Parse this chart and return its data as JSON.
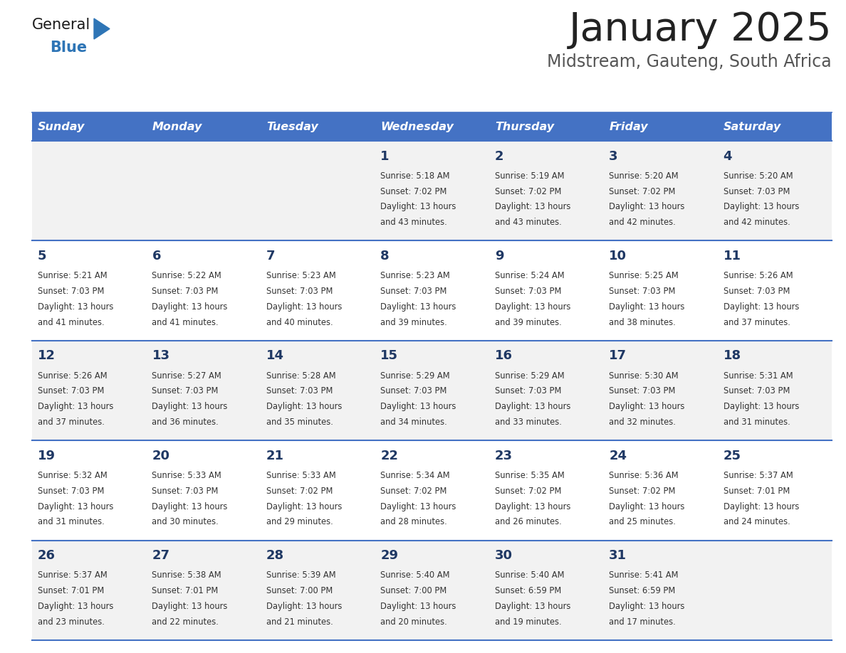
{
  "title": "January 2025",
  "subtitle": "Midstream, Gauteng, South Africa",
  "title_color": "#222222",
  "subtitle_color": "#555555",
  "header_bg_color": "#4472C4",
  "header_text_color": "#FFFFFF",
  "row_bg_even": "#F2F2F2",
  "row_bg_odd": "#FFFFFF",
  "day_number_color": "#1F3864",
  "cell_text_color": "#333333",
  "divider_color": "#4472C4",
  "days_of_week": [
    "Sunday",
    "Monday",
    "Tuesday",
    "Wednesday",
    "Thursday",
    "Friday",
    "Saturday"
  ],
  "calendar": [
    [
      {
        "day": "",
        "sunrise": "",
        "sunset": "",
        "daylight": ""
      },
      {
        "day": "",
        "sunrise": "",
        "sunset": "",
        "daylight": ""
      },
      {
        "day": "",
        "sunrise": "",
        "sunset": "",
        "daylight": ""
      },
      {
        "day": "1",
        "sunrise": "5:18 AM",
        "sunset": "7:02 PM",
        "daylight": "13 hours and 43 minutes."
      },
      {
        "day": "2",
        "sunrise": "5:19 AM",
        "sunset": "7:02 PM",
        "daylight": "13 hours and 43 minutes."
      },
      {
        "day": "3",
        "sunrise": "5:20 AM",
        "sunset": "7:02 PM",
        "daylight": "13 hours and 42 minutes."
      },
      {
        "day": "4",
        "sunrise": "5:20 AM",
        "sunset": "7:03 PM",
        "daylight": "13 hours and 42 minutes."
      }
    ],
    [
      {
        "day": "5",
        "sunrise": "5:21 AM",
        "sunset": "7:03 PM",
        "daylight": "13 hours and 41 minutes."
      },
      {
        "day": "6",
        "sunrise": "5:22 AM",
        "sunset": "7:03 PM",
        "daylight": "13 hours and 41 minutes."
      },
      {
        "day": "7",
        "sunrise": "5:23 AM",
        "sunset": "7:03 PM",
        "daylight": "13 hours and 40 minutes."
      },
      {
        "day": "8",
        "sunrise": "5:23 AM",
        "sunset": "7:03 PM",
        "daylight": "13 hours and 39 minutes."
      },
      {
        "day": "9",
        "sunrise": "5:24 AM",
        "sunset": "7:03 PM",
        "daylight": "13 hours and 39 minutes."
      },
      {
        "day": "10",
        "sunrise": "5:25 AM",
        "sunset": "7:03 PM",
        "daylight": "13 hours and 38 minutes."
      },
      {
        "day": "11",
        "sunrise": "5:26 AM",
        "sunset": "7:03 PM",
        "daylight": "13 hours and 37 minutes."
      }
    ],
    [
      {
        "day": "12",
        "sunrise": "5:26 AM",
        "sunset": "7:03 PM",
        "daylight": "13 hours and 37 minutes."
      },
      {
        "day": "13",
        "sunrise": "5:27 AM",
        "sunset": "7:03 PM",
        "daylight": "13 hours and 36 minutes."
      },
      {
        "day": "14",
        "sunrise": "5:28 AM",
        "sunset": "7:03 PM",
        "daylight": "13 hours and 35 minutes."
      },
      {
        "day": "15",
        "sunrise": "5:29 AM",
        "sunset": "7:03 PM",
        "daylight": "13 hours and 34 minutes."
      },
      {
        "day": "16",
        "sunrise": "5:29 AM",
        "sunset": "7:03 PM",
        "daylight": "13 hours and 33 minutes."
      },
      {
        "day": "17",
        "sunrise": "5:30 AM",
        "sunset": "7:03 PM",
        "daylight": "13 hours and 32 minutes."
      },
      {
        "day": "18",
        "sunrise": "5:31 AM",
        "sunset": "7:03 PM",
        "daylight": "13 hours and 31 minutes."
      }
    ],
    [
      {
        "day": "19",
        "sunrise": "5:32 AM",
        "sunset": "7:03 PM",
        "daylight": "13 hours and 31 minutes."
      },
      {
        "day": "20",
        "sunrise": "5:33 AM",
        "sunset": "7:03 PM",
        "daylight": "13 hours and 30 minutes."
      },
      {
        "day": "21",
        "sunrise": "5:33 AM",
        "sunset": "7:02 PM",
        "daylight": "13 hours and 29 minutes."
      },
      {
        "day": "22",
        "sunrise": "5:34 AM",
        "sunset": "7:02 PM",
        "daylight": "13 hours and 28 minutes."
      },
      {
        "day": "23",
        "sunrise": "5:35 AM",
        "sunset": "7:02 PM",
        "daylight": "13 hours and 26 minutes."
      },
      {
        "day": "24",
        "sunrise": "5:36 AM",
        "sunset": "7:02 PM",
        "daylight": "13 hours and 25 minutes."
      },
      {
        "day": "25",
        "sunrise": "5:37 AM",
        "sunset": "7:01 PM",
        "daylight": "13 hours and 24 minutes."
      }
    ],
    [
      {
        "day": "26",
        "sunrise": "5:37 AM",
        "sunset": "7:01 PM",
        "daylight": "13 hours and 23 minutes."
      },
      {
        "day": "27",
        "sunrise": "5:38 AM",
        "sunset": "7:01 PM",
        "daylight": "13 hours and 22 minutes."
      },
      {
        "day": "28",
        "sunrise": "5:39 AM",
        "sunset": "7:00 PM",
        "daylight": "13 hours and 21 minutes."
      },
      {
        "day": "29",
        "sunrise": "5:40 AM",
        "sunset": "7:00 PM",
        "daylight": "13 hours and 20 minutes."
      },
      {
        "day": "30",
        "sunrise": "5:40 AM",
        "sunset": "6:59 PM",
        "daylight": "13 hours and 19 minutes."
      },
      {
        "day": "31",
        "sunrise": "5:41 AM",
        "sunset": "6:59 PM",
        "daylight": "13 hours and 17 minutes."
      },
      {
        "day": "",
        "sunrise": "",
        "sunset": "",
        "daylight": ""
      }
    ]
  ],
  "logo_text_general": "General",
  "logo_text_blue": "Blue",
  "logo_color_general": "#1a1a1a",
  "logo_color_blue": "#2e75b6"
}
